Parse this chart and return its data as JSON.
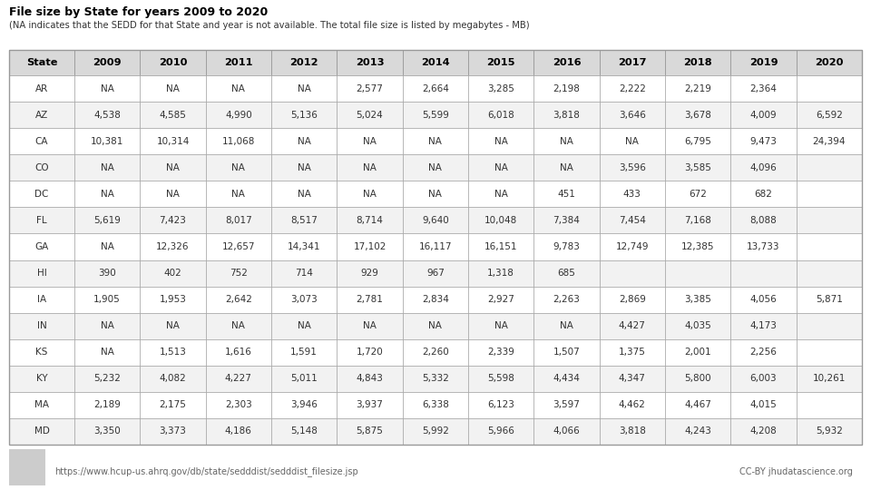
{
  "title": "File size by State for years 2009 to 2020",
  "subtitle": "(NA indicates that the SEDD for that State and year is not available. The total file size is listed by megabytes - MB)",
  "footer_left": "https://www.hcup-us.ahrq.gov/db/state/sedddist/sedddist_filesize.jsp",
  "footer_right": "CC-BY jhudatascience.org",
  "columns": [
    "State",
    "2009",
    "2010",
    "2011",
    "2012",
    "2013",
    "2014",
    "2015",
    "2016",
    "2017",
    "2018",
    "2019",
    "2020"
  ],
  "rows": [
    [
      "AR",
      "NA",
      "NA",
      "NA",
      "NA",
      "2,577",
      "2,664",
      "3,285",
      "2,198",
      "2,222",
      "2,219",
      "2,364",
      ""
    ],
    [
      "AZ",
      "4,538",
      "4,585",
      "4,990",
      "5,136",
      "5,024",
      "5,599",
      "6,018",
      "3,818",
      "3,646",
      "3,678",
      "4,009",
      "6,592"
    ],
    [
      "CA",
      "10,381",
      "10,314",
      "11,068",
      "NA",
      "NA",
      "NA",
      "NA",
      "NA",
      "NA",
      "6,795",
      "9,473",
      "24,394"
    ],
    [
      "CO",
      "NA",
      "NA",
      "NA",
      "NA",
      "NA",
      "NA",
      "NA",
      "NA",
      "3,596",
      "3,585",
      "4,096",
      ""
    ],
    [
      "DC",
      "NA",
      "NA",
      "NA",
      "NA",
      "NA",
      "NA",
      "NA",
      "451",
      "433",
      "672",
      "682",
      ""
    ],
    [
      "FL",
      "5,619",
      "7,423",
      "8,017",
      "8,517",
      "8,714",
      "9,640",
      "10,048",
      "7,384",
      "7,454",
      "7,168",
      "8,088",
      ""
    ],
    [
      "GA",
      "NA",
      "12,326",
      "12,657",
      "14,341",
      "17,102",
      "16,117",
      "16,151",
      "9,783",
      "12,749",
      "12,385",
      "13,733",
      ""
    ],
    [
      "HI",
      "390",
      "402",
      "752",
      "714",
      "929",
      "967",
      "1,318",
      "685",
      "",
      "",
      "",
      ""
    ],
    [
      "IA",
      "1,905",
      "1,953",
      "2,642",
      "3,073",
      "2,781",
      "2,834",
      "2,927",
      "2,263",
      "2,869",
      "3,385",
      "4,056",
      "5,871"
    ],
    [
      "IN",
      "NA",
      "NA",
      "NA",
      "NA",
      "NA",
      "NA",
      "NA",
      "NA",
      "4,427",
      "4,035",
      "4,173",
      ""
    ],
    [
      "KS",
      "NA",
      "1,513",
      "1,616",
      "1,591",
      "1,720",
      "2,260",
      "2,339",
      "1,507",
      "1,375",
      "2,001",
      "2,256",
      ""
    ],
    [
      "KY",
      "5,232",
      "4,082",
      "4,227",
      "5,011",
      "4,843",
      "5,332",
      "5,598",
      "4,434",
      "4,347",
      "5,800",
      "6,003",
      "10,261"
    ],
    [
      "MA",
      "2,189",
      "2,175",
      "2,303",
      "3,946",
      "3,937",
      "6,338",
      "6,123",
      "3,597",
      "4,462",
      "4,467",
      "4,015",
      ""
    ],
    [
      "MD",
      "3,350",
      "3,373",
      "4,186",
      "5,148",
      "5,875",
      "5,992",
      "5,966",
      "4,066",
      "3,818",
      "4,243",
      "4,208",
      "5,932"
    ]
  ],
  "header_bg": "#d9d9d9",
  "row_bg_odd": "#ffffff",
  "row_bg_even": "#f2f2f2",
  "border_color": "#999999",
  "text_color": "#333333",
  "header_text_color": "#000000",
  "title_color": "#000000",
  "subtitle_color": "#333333",
  "footer_color": "#666666",
  "background_color": "#ffffff"
}
